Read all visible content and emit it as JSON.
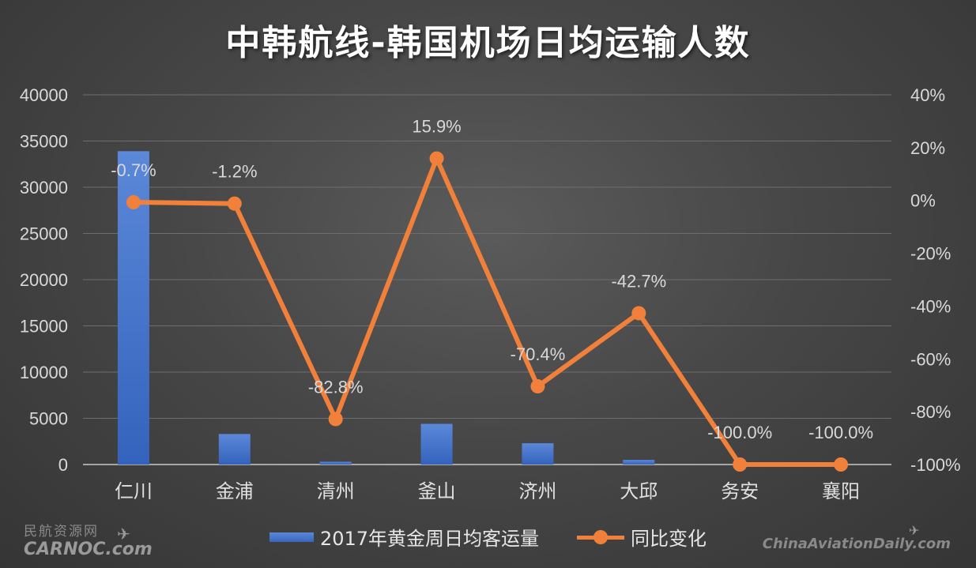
{
  "chart_data": {
    "type": "bar",
    "title": "中韩航线-韩国机场日均运输人数",
    "categories": [
      "仁川",
      "金浦",
      "清州",
      "釜山",
      "济州",
      "大邱",
      "务安",
      "襄阳"
    ],
    "series": [
      {
        "name": "2017年黄金周日均客运量",
        "type": "bar",
        "axis": "left",
        "color": "#4472c4",
        "values": [
          33900,
          3300,
          300,
          4400,
          2300,
          500,
          0,
          0
        ]
      },
      {
        "name": "同比变化",
        "type": "line",
        "axis": "right",
        "color": "#f0803a",
        "values": [
          -0.7,
          -1.2,
          -82.8,
          15.9,
          -70.4,
          -42.7,
          -100.0,
          -100.0
        ],
        "data_labels": [
          "-0.7%",
          "-1.2%",
          "-82.8%",
          "15.9%",
          "-70.4%",
          "-42.7%",
          "-100.0%",
          "-100.0%"
        ]
      }
    ],
    "y_left": {
      "ylim": [
        0,
        40000
      ],
      "ticks": [
        "0",
        "5000",
        "10000",
        "15000",
        "20000",
        "25000",
        "30000",
        "35000",
        "40000"
      ]
    },
    "y_right": {
      "ylim": [
        -100,
        40
      ],
      "ticks": [
        "-100%",
        "-80%",
        "-60%",
        "-40%",
        "-20%",
        "0%",
        "20%",
        "40%"
      ]
    },
    "grid": true,
    "legend": "bottom"
  },
  "watermarks": {
    "left_cn": "民航资源网",
    "left_en": "CARNOC.com",
    "right_en": "ChinaAviationDaily.com"
  }
}
